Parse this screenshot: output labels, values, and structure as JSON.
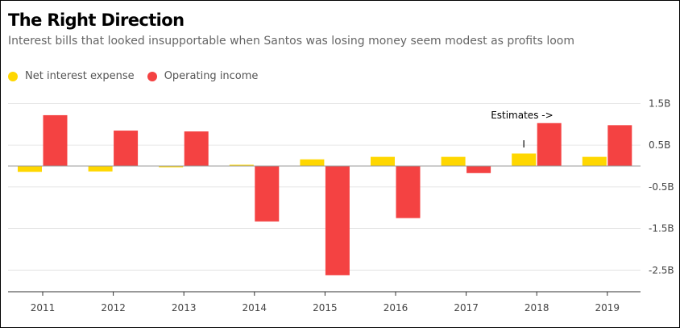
{
  "chart_data": {
    "type": "bar",
    "title": "The Right Direction",
    "subtitle": "Interest bills that looked insupportable when Santos was losing money seem modest as profits loom",
    "categories": [
      "2011",
      "2012",
      "2013",
      "2014",
      "2015",
      "2016",
      "2017",
      "2018",
      "2019"
    ],
    "series": [
      {
        "name": "Net interest expense",
        "color": "#FFD700",
        "values": [
          -0.14,
          -0.13,
          -0.03,
          0.03,
          0.16,
          0.22,
          0.22,
          0.3,
          0.22
        ]
      },
      {
        "name": "Operating income",
        "color": "#F44242",
        "values": [
          1.22,
          0.85,
          0.83,
          -1.33,
          -2.62,
          -1.25,
          -0.17,
          1.03,
          0.98
        ]
      }
    ],
    "yticks": [
      1.5,
      0.5,
      -0.5,
      -1.5,
      -2.5
    ],
    "ytick_labels": [
      "1.5B",
      "0.5B",
      "-0.5B",
      "-1.5B",
      "-2.5B"
    ],
    "ylim": [
      -2.95,
      1.85
    ],
    "grid": true,
    "legend_position": "top-left",
    "annotation": {
      "text": "Estimates ->",
      "marker": "I",
      "category": "2018"
    }
  }
}
